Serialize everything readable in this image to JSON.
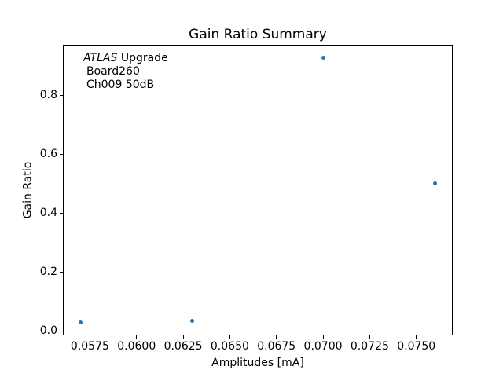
{
  "chart_data": {
    "type": "scatter",
    "title": "Gain Ratio Summary",
    "xlabel": "Amplitudes [mA]",
    "ylabel": "Gain Ratio",
    "annotation": {
      "line1_italic": "ATLAS",
      "line1_rest": " Upgrade",
      "line2": "Board260",
      "line3": "Ch009 50dB"
    },
    "points": [
      {
        "x": 0.057,
        "y": 0.03
      },
      {
        "x": 0.063,
        "y": 0.035
      },
      {
        "x": 0.07,
        "y": 0.928
      },
      {
        "x": 0.076,
        "y": 0.503
      }
    ],
    "xlim": [
      0.05605,
      0.07695
    ],
    "ylim": [
      -0.0145,
      0.973
    ],
    "xticks": [
      {
        "value": 0.0575,
        "label": "0.0575"
      },
      {
        "value": 0.06,
        "label": "0.0600"
      },
      {
        "value": 0.0625,
        "label": "0.0625"
      },
      {
        "value": 0.065,
        "label": "0.0650"
      },
      {
        "value": 0.0675,
        "label": "0.0675"
      },
      {
        "value": 0.07,
        "label": "0.0700"
      },
      {
        "value": 0.0725,
        "label": "0.0725"
      },
      {
        "value": 0.075,
        "label": "0.0750"
      }
    ],
    "yticks": [
      {
        "value": 0.0,
        "label": "0.0"
      },
      {
        "value": 0.2,
        "label": "0.2"
      },
      {
        "value": 0.4,
        "label": "0.4"
      },
      {
        "value": 0.6,
        "label": "0.6"
      },
      {
        "value": 0.8,
        "label": "0.8"
      }
    ],
    "grid": true,
    "legend_position": "none",
    "marker_color": "#1f77b4",
    "grid_color": "#b0b0b0",
    "spine_color": "#000000",
    "background_color": "#ffffff"
  }
}
